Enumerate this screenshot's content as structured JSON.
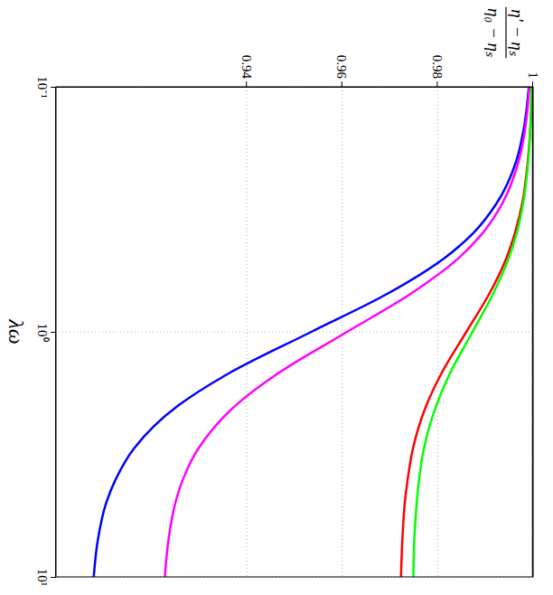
{
  "chart_data": {
    "type": "line",
    "ylabel": [
      "η′ − ηₛ",
      "η₀ − ηₛ"
    ],
    "xlabel": "λω",
    "log": "x",
    "grid": true,
    "x": [
      0.1,
      0.15,
      0.2,
      0.3,
      0.4,
      0.5,
      0.7,
      1,
      1.5,
      2,
      3,
      4,
      5,
      7,
      10
    ],
    "xlim": [
      0.1,
      10
    ],
    "xticks": [
      {
        "value": 0.1,
        "label": "10⁻¹"
      },
      {
        "value": 1,
        "label": "10⁰"
      },
      {
        "value": 10,
        "label": "10¹"
      }
    ],
    "ylim": [
      0.9,
      1
    ],
    "yticks": [
      0.94,
      0.96,
      0.98,
      1
    ],
    "series": [
      {
        "color": "#0000ff",
        "values": [
          0.9991,
          0.998,
          0.9965,
          0.9923,
          0.9872,
          0.9814,
          0.9694,
          0.9535,
          0.9356,
          0.9256,
          0.9163,
          0.9125,
          0.9105,
          0.9088,
          0.9079
        ]
      },
      {
        "color": "#ff00ff",
        "values": [
          0.9992,
          0.9983,
          0.997,
          0.9935,
          0.9892,
          0.9844,
          0.9743,
          0.961,
          0.946,
          0.9376,
          0.9298,
          0.9266,
          0.925,
          0.9236,
          0.9228
        ]
      },
      {
        "color": "#ff0000",
        "values": [
          0.9997,
          0.9994,
          0.9989,
          0.9977,
          0.9961,
          0.9944,
          0.9908,
          0.986,
          0.9806,
          0.9776,
          0.9748,
          0.9737,
          0.9731,
          0.9726,
          0.9723
        ]
      },
      {
        "color": "#00ff00",
        "values": [
          0.9997,
          0.9994,
          0.999,
          0.9979,
          0.9965,
          0.9949,
          0.9916,
          0.9873,
          0.9824,
          0.9797,
          0.9771,
          0.9761,
          0.9756,
          0.9751,
          0.9749
        ]
      },
      {
        "color": "#000000",
        "values": [
          1,
          1,
          1,
          1,
          1,
          1,
          1,
          1,
          1,
          1,
          1,
          1,
          1,
          1,
          1
        ]
      }
    ]
  }
}
